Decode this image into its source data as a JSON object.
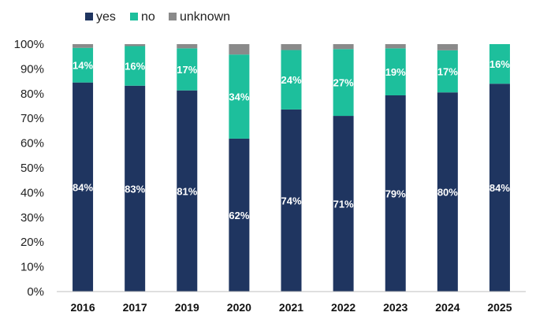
{
  "chart_data": {
    "type": "bar",
    "stacked": true,
    "title": "",
    "xlabel": "",
    "ylabel": "",
    "ylim": [
      0,
      100
    ],
    "y_ticks": [
      "0%",
      "10%",
      "20%",
      "30%",
      "40%",
      "50%",
      "60%",
      "70%",
      "80%",
      "90%",
      "100%"
    ],
    "categories": [
      "2016",
      "2017",
      "2019",
      "2020",
      "2021",
      "2022",
      "2023",
      "2024",
      "2025"
    ],
    "legend_position": "top-left",
    "grid": false,
    "series": [
      {
        "name": "yes",
        "color": "#1f3560",
        "values": [
          84.5,
          83.2,
          81.3,
          61.8,
          73.6,
          71.0,
          79.3,
          80.5,
          84.0
        ],
        "labels": [
          "84%",
          "83%",
          "81%",
          "62%",
          "74%",
          "71%",
          "79%",
          "80%",
          "84%"
        ]
      },
      {
        "name": "no",
        "color": "#1dbf9c",
        "values": [
          14,
          16,
          17,
          34,
          24,
          27,
          19,
          17,
          16
        ],
        "labels": [
          "14%",
          "16%",
          "17%",
          "34%",
          "24%",
          "27%",
          "19%",
          "17%",
          "16%"
        ]
      },
      {
        "name": "unknown",
        "color": "#8a8a8a",
        "values": [
          1.5,
          0.8,
          1.7,
          4.2,
          2.4,
          2.0,
          1.7,
          2.5,
          0
        ],
        "labels": [
          "",
          "",
          "",
          "",
          "",
          "",
          "",
          "",
          ""
        ]
      }
    ]
  }
}
